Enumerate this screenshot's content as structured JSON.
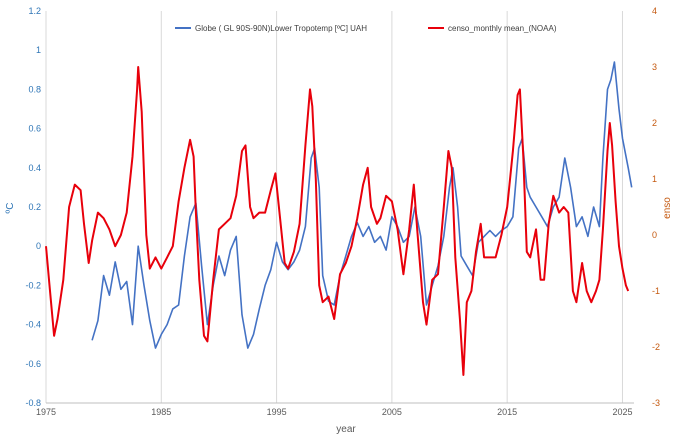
{
  "chart_data": {
    "type": "line",
    "xlabel": "year",
    "ylabel_left": "ºC",
    "ylabel_right": "enso",
    "xlim": [
      1975,
      2026
    ],
    "ylim_left": [
      -0.8,
      1.2
    ],
    "ylim_right": [
      -3,
      4
    ],
    "x_ticks": [
      1975,
      1985,
      1995,
      2005,
      2015,
      2025
    ],
    "y_ticks_left": [
      -0.8,
      -0.6,
      -0.4,
      -0.2,
      0,
      0.2,
      0.4,
      0.6,
      0.8,
      1,
      1.2
    ],
    "y_ticks_right": [
      -3,
      -2,
      -1,
      0,
      1,
      2,
      3,
      4
    ],
    "grid": "vertical",
    "legend_position": "top",
    "series": [
      {
        "name": "Globe (  GL 90S-90N)Lower Tropotemp [ºC] UAH",
        "axis": "left",
        "color": "#4472C4",
        "points": [
          [
            1979.0,
            -0.48
          ],
          [
            1979.5,
            -0.38
          ],
          [
            1980.0,
            -0.15
          ],
          [
            1980.5,
            -0.25
          ],
          [
            1981.0,
            -0.08
          ],
          [
            1981.5,
            -0.22
          ],
          [
            1982.0,
            -0.18
          ],
          [
            1982.5,
            -0.4
          ],
          [
            1983.0,
            0.0
          ],
          [
            1983.5,
            -0.2
          ],
          [
            1984.0,
            -0.38
          ],
          [
            1984.5,
            -0.52
          ],
          [
            1985.0,
            -0.45
          ],
          [
            1985.5,
            -0.4
          ],
          [
            1986.0,
            -0.32
          ],
          [
            1986.5,
            -0.3
          ],
          [
            1987.0,
            -0.05
          ],
          [
            1987.5,
            0.15
          ],
          [
            1988.0,
            0.22
          ],
          [
            1988.5,
            -0.1
          ],
          [
            1989.0,
            -0.4
          ],
          [
            1989.5,
            -0.2
          ],
          [
            1990.0,
            -0.05
          ],
          [
            1990.5,
            -0.15
          ],
          [
            1991.0,
            -0.02
          ],
          [
            1991.5,
            0.05
          ],
          [
            1992.0,
            -0.35
          ],
          [
            1992.5,
            -0.52
          ],
          [
            1993.0,
            -0.45
          ],
          [
            1993.5,
            -0.32
          ],
          [
            1994.0,
            -0.2
          ],
          [
            1994.5,
            -0.12
          ],
          [
            1995.0,
            0.02
          ],
          [
            1995.5,
            -0.08
          ],
          [
            1996.0,
            -0.12
          ],
          [
            1996.5,
            -0.08
          ],
          [
            1997.0,
            -0.02
          ],
          [
            1997.5,
            0.1
          ],
          [
            1998.0,
            0.45
          ],
          [
            1998.3,
            0.5
          ],
          [
            1998.7,
            0.3
          ],
          [
            1999.0,
            -0.15
          ],
          [
            1999.5,
            -0.28
          ],
          [
            2000.0,
            -0.3
          ],
          [
            2000.5,
            -0.15
          ],
          [
            2001.0,
            -0.05
          ],
          [
            2001.5,
            0.05
          ],
          [
            2002.0,
            0.12
          ],
          [
            2002.5,
            0.05
          ],
          [
            2003.0,
            0.1
          ],
          [
            2003.5,
            0.02
          ],
          [
            2004.0,
            0.05
          ],
          [
            2004.5,
            -0.02
          ],
          [
            2005.0,
            0.15
          ],
          [
            2005.5,
            0.1
          ],
          [
            2006.0,
            0.02
          ],
          [
            2006.5,
            0.05
          ],
          [
            2007.0,
            0.2
          ],
          [
            2007.5,
            0.05
          ],
          [
            2008.0,
            -0.3
          ],
          [
            2008.5,
            -0.2
          ],
          [
            2009.0,
            -0.1
          ],
          [
            2009.5,
            0.05
          ],
          [
            2010.0,
            0.3
          ],
          [
            2010.3,
            0.4
          ],
          [
            2010.7,
            0.2
          ],
          [
            2011.0,
            -0.05
          ],
          [
            2011.5,
            -0.1
          ],
          [
            2012.0,
            -0.15
          ],
          [
            2012.5,
            0.02
          ],
          [
            2013.0,
            0.05
          ],
          [
            2013.5,
            0.08
          ],
          [
            2014.0,
            0.05
          ],
          [
            2014.5,
            0.08
          ],
          [
            2015.0,
            0.1
          ],
          [
            2015.5,
            0.15
          ],
          [
            2016.0,
            0.5
          ],
          [
            2016.3,
            0.55
          ],
          [
            2016.7,
            0.3
          ],
          [
            2017.0,
            0.25
          ],
          [
            2017.5,
            0.2
          ],
          [
            2018.0,
            0.15
          ],
          [
            2018.5,
            0.1
          ],
          [
            2019.0,
            0.2
          ],
          [
            2019.5,
            0.25
          ],
          [
            2020.0,
            0.45
          ],
          [
            2020.5,
            0.3
          ],
          [
            2021.0,
            0.1
          ],
          [
            2021.5,
            0.15
          ],
          [
            2022.0,
            0.05
          ],
          [
            2022.5,
            0.2
          ],
          [
            2023.0,
            0.1
          ],
          [
            2023.3,
            0.45
          ],
          [
            2023.7,
            0.8
          ],
          [
            2024.0,
            0.85
          ],
          [
            2024.3,
            0.94
          ],
          [
            2024.7,
            0.7
          ],
          [
            2025.0,
            0.55
          ],
          [
            2025.5,
            0.4
          ],
          [
            2025.8,
            0.3
          ]
        ]
      },
      {
        "name": "censo_monthly mean_(NOAA)",
        "axis": "right",
        "color": "#E8000B",
        "points": [
          [
            1975.0,
            -0.2
          ],
          [
            1975.3,
            -0.9
          ],
          [
            1975.7,
            -1.8
          ],
          [
            1976.0,
            -1.5
          ],
          [
            1976.5,
            -0.8
          ],
          [
            1977.0,
            0.5
          ],
          [
            1977.5,
            0.9
          ],
          [
            1978.0,
            0.8
          ],
          [
            1978.3,
            0.2
          ],
          [
            1978.7,
            -0.5
          ],
          [
            1979.0,
            -0.1
          ],
          [
            1979.5,
            0.4
          ],
          [
            1980.0,
            0.3
          ],
          [
            1980.5,
            0.1
          ],
          [
            1981.0,
            -0.2
          ],
          [
            1981.5,
            0.0
          ],
          [
            1982.0,
            0.4
          ],
          [
            1982.5,
            1.4
          ],
          [
            1982.9,
            2.6
          ],
          [
            1983.0,
            3.0
          ],
          [
            1983.3,
            2.2
          ],
          [
            1983.7,
            0.0
          ],
          [
            1984.0,
            -0.6
          ],
          [
            1984.5,
            -0.4
          ],
          [
            1985.0,
            -0.6
          ],
          [
            1985.5,
            -0.4
          ],
          [
            1986.0,
            -0.2
          ],
          [
            1986.5,
            0.6
          ],
          [
            1987.0,
            1.2
          ],
          [
            1987.5,
            1.7
          ],
          [
            1987.8,
            1.4
          ],
          [
            1988.0,
            0.4
          ],
          [
            1988.3,
            -0.8
          ],
          [
            1988.7,
            -1.8
          ],
          [
            1989.0,
            -1.9
          ],
          [
            1989.5,
            -0.8
          ],
          [
            1990.0,
            0.1
          ],
          [
            1990.5,
            0.2
          ],
          [
            1991.0,
            0.3
          ],
          [
            1991.5,
            0.7
          ],
          [
            1992.0,
            1.5
          ],
          [
            1992.3,
            1.6
          ],
          [
            1992.7,
            0.5
          ],
          [
            1993.0,
            0.3
          ],
          [
            1993.5,
            0.4
          ],
          [
            1994.0,
            0.4
          ],
          [
            1994.5,
            0.8
          ],
          [
            1994.9,
            1.1
          ],
          [
            1995.2,
            0.5
          ],
          [
            1995.7,
            -0.5
          ],
          [
            1996.0,
            -0.6
          ],
          [
            1996.5,
            -0.3
          ],
          [
            1997.0,
            0.2
          ],
          [
            1997.5,
            1.6
          ],
          [
            1997.9,
            2.6
          ],
          [
            1998.1,
            2.3
          ],
          [
            1998.4,
            1.0
          ],
          [
            1998.7,
            -0.9
          ],
          [
            1999.0,
            -1.2
          ],
          [
            1999.5,
            -1.1
          ],
          [
            2000.0,
            -1.5
          ],
          [
            2000.5,
            -0.7
          ],
          [
            2001.0,
            -0.5
          ],
          [
            2001.5,
            -0.2
          ],
          [
            2002.0,
            0.3
          ],
          [
            2002.5,
            0.9
          ],
          [
            2002.9,
            1.2
          ],
          [
            2003.2,
            0.5
          ],
          [
            2003.7,
            0.2
          ],
          [
            2004.0,
            0.3
          ],
          [
            2004.5,
            0.7
          ],
          [
            2005.0,
            0.6
          ],
          [
            2005.5,
            0.1
          ],
          [
            2006.0,
            -0.7
          ],
          [
            2006.5,
            0.1
          ],
          [
            2006.9,
            0.9
          ],
          [
            2007.2,
            0.1
          ],
          [
            2007.7,
            -1.2
          ],
          [
            2008.0,
            -1.6
          ],
          [
            2008.5,
            -0.8
          ],
          [
            2009.0,
            -0.7
          ],
          [
            2009.5,
            0.5
          ],
          [
            2009.9,
            1.5
          ],
          [
            2010.2,
            1.2
          ],
          [
            2010.5,
            -0.4
          ],
          [
            2010.9,
            -1.5
          ],
          [
            2011.2,
            -2.5
          ],
          [
            2011.5,
            -1.2
          ],
          [
            2011.9,
            -1.0
          ],
          [
            2012.3,
            -0.3
          ],
          [
            2012.7,
            0.2
          ],
          [
            2013.0,
            -0.4
          ],
          [
            2013.5,
            -0.4
          ],
          [
            2014.0,
            -0.4
          ],
          [
            2014.5,
            0.0
          ],
          [
            2015.0,
            0.5
          ],
          [
            2015.5,
            1.5
          ],
          [
            2015.9,
            2.5
          ],
          [
            2016.1,
            2.6
          ],
          [
            2016.4,
            1.4
          ],
          [
            2016.7,
            -0.3
          ],
          [
            2017.0,
            -0.4
          ],
          [
            2017.5,
            0.1
          ],
          [
            2017.9,
            -0.8
          ],
          [
            2018.2,
            -0.8
          ],
          [
            2018.6,
            0.2
          ],
          [
            2019.0,
            0.7
          ],
          [
            2019.5,
            0.4
          ],
          [
            2019.9,
            0.5
          ],
          [
            2020.3,
            0.4
          ],
          [
            2020.7,
            -1.0
          ],
          [
            2021.0,
            -1.2
          ],
          [
            2021.5,
            -0.5
          ],
          [
            2021.9,
            -1.0
          ],
          [
            2022.3,
            -1.2
          ],
          [
            2022.7,
            -1.0
          ],
          [
            2023.0,
            -0.8
          ],
          [
            2023.3,
            0.1
          ],
          [
            2023.7,
            1.5
          ],
          [
            2023.9,
            2.0
          ],
          [
            2024.1,
            1.6
          ],
          [
            2024.4,
            0.6
          ],
          [
            2024.7,
            -0.2
          ],
          [
            2025.0,
            -0.6
          ],
          [
            2025.3,
            -0.9
          ],
          [
            2025.5,
            -1.0
          ]
        ]
      }
    ]
  }
}
